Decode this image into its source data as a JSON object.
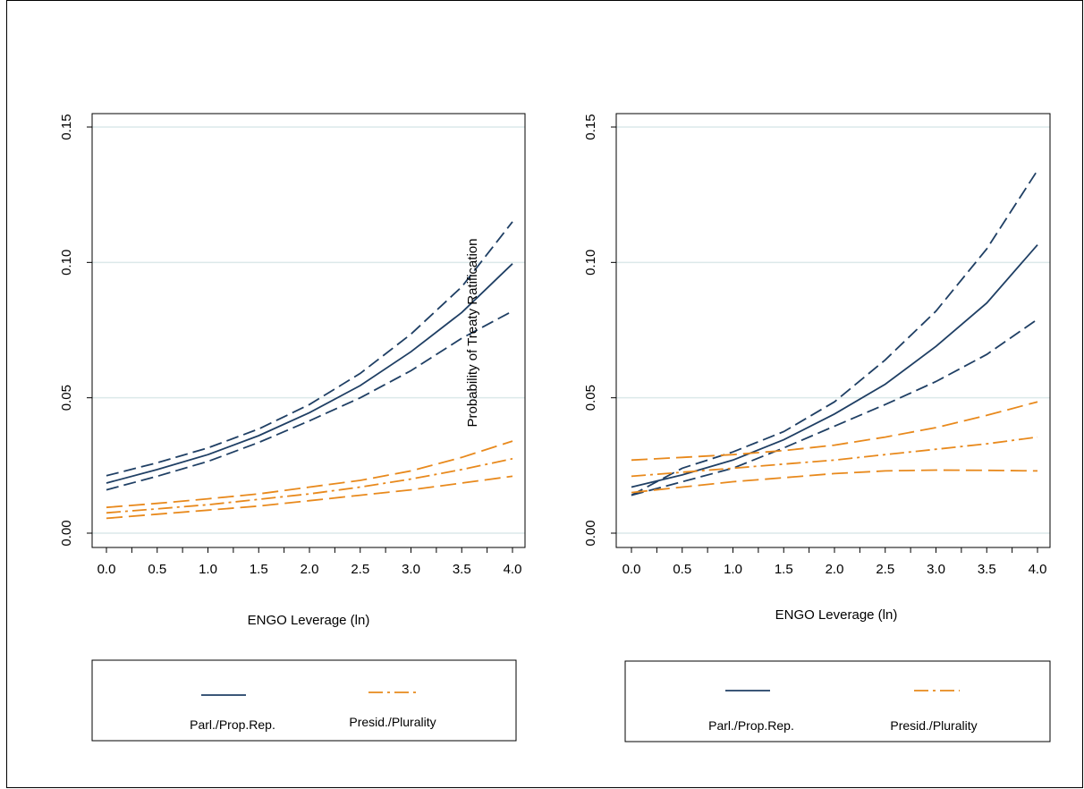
{
  "colors": {
    "parl": "#1f3f64",
    "presid": "#e8891c",
    "grid": "#dce9ea",
    "axis": "#000000"
  },
  "chart_data": [
    {
      "type": "line",
      "ylabel": "Probability of Treaty Ratification",
      "xlabel": "ENGO Leverage (ln)",
      "xlim": [
        0,
        4
      ],
      "ylim": [
        0,
        0.15
      ],
      "xticks": [
        "0.0",
        "0.5",
        "1.0",
        "1.5",
        "2.0",
        "2.5",
        "3.0",
        "3.5",
        "4.0"
      ],
      "yticks": [
        "0.00",
        "0.05",
        "0.10",
        "0.15"
      ],
      "grid": "horizontal",
      "x": [
        0,
        0.5,
        1,
        1.5,
        2,
        2.5,
        3,
        3.5,
        4
      ],
      "series": [
        {
          "name": "Parl./Prop.Rep.",
          "group": "parl",
          "role": "estimate",
          "style": "solid",
          "values": [
            0.0185,
            0.0235,
            0.029,
            0.036,
            0.0445,
            0.0545,
            0.067,
            0.0815,
            0.0995
          ]
        },
        {
          "group": "parl",
          "role": "upper-ci",
          "style": "dash",
          "values": [
            0.0212,
            0.026,
            0.0315,
            0.0385,
            0.0475,
            0.059,
            0.0735,
            0.091,
            0.115
          ]
        },
        {
          "group": "parl",
          "role": "lower-ci",
          "style": "dash",
          "values": [
            0.016,
            0.021,
            0.0265,
            0.0335,
            0.0415,
            0.05,
            0.06,
            0.072,
            0.082
          ]
        },
        {
          "name": "Presid./Plurality",
          "group": "presid",
          "role": "estimate",
          "style": "dashdot",
          "values": [
            0.0075,
            0.009,
            0.0105,
            0.0125,
            0.0145,
            0.017,
            0.02,
            0.0235,
            0.0275
          ]
        },
        {
          "group": "presid",
          "role": "upper-ci",
          "style": "longdash",
          "values": [
            0.0095,
            0.011,
            0.0127,
            0.0145,
            0.017,
            0.0195,
            0.023,
            0.028,
            0.034
          ]
        },
        {
          "group": "presid",
          "role": "lower-ci",
          "style": "longdash",
          "values": [
            0.0055,
            0.007,
            0.0085,
            0.01,
            0.012,
            0.014,
            0.016,
            0.0185,
            0.021
          ]
        }
      ],
      "legend": {
        "position": "bottom",
        "items": [
          "Parl./Prop.Rep.",
          "Presid./Plurality"
        ]
      }
    },
    {
      "type": "line",
      "xlabel": "ENGO Leverage (ln)",
      "xlim": [
        0,
        4
      ],
      "ylim": [
        0,
        0.15
      ],
      "xticks": [
        "0.0",
        "0.5",
        "1.0",
        "1.5",
        "2.0",
        "2.5",
        "3.0",
        "3.5",
        "4.0"
      ],
      "yticks": [
        "0.00",
        "0.05",
        "0.10",
        "0.15"
      ],
      "grid": "horizontal",
      "x": [
        0,
        0.5,
        1,
        1.5,
        2,
        2.5,
        3,
        3.5,
        4
      ],
      "series": [
        {
          "name": "Parl./Prop.Rep.",
          "group": "parl",
          "role": "estimate",
          "style": "solid",
          "values": [
            0.017,
            0.0215,
            0.027,
            0.0345,
            0.044,
            0.055,
            0.069,
            0.085,
            0.1065
          ]
        },
        {
          "group": "parl",
          "role": "upper-ci",
          "style": "dash",
          "values": [
            0.014,
            0.024,
            0.03,
            0.0375,
            0.0485,
            0.064,
            0.082,
            0.105,
            0.134
          ]
        },
        {
          "group": "parl",
          "role": "lower-ci",
          "style": "dash",
          "values": [
            0.014,
            0.019,
            0.024,
            0.0315,
            0.0395,
            0.0475,
            0.056,
            0.066,
            0.079
          ]
        },
        {
          "name": "Presid./Plurality",
          "group": "presid",
          "role": "estimate",
          "style": "dashdot",
          "values": [
            0.021,
            0.0225,
            0.024,
            0.0255,
            0.027,
            0.029,
            0.031,
            0.033,
            0.0355
          ]
        },
        {
          "group": "presid",
          "role": "upper-ci",
          "style": "longdash",
          "values": [
            0.027,
            0.028,
            0.029,
            0.0305,
            0.0325,
            0.0355,
            0.039,
            0.0435,
            0.0485
          ]
        },
        {
          "group": "presid",
          "role": "lower-ci",
          "style": "longdash",
          "values": [
            0.015,
            0.017,
            0.019,
            0.0205,
            0.022,
            0.023,
            0.0233,
            0.0232,
            0.023
          ]
        }
      ],
      "legend": {
        "position": "bottom",
        "items": [
          "Parl./Prop.Rep.",
          "Presid./Plurality"
        ]
      }
    }
  ]
}
